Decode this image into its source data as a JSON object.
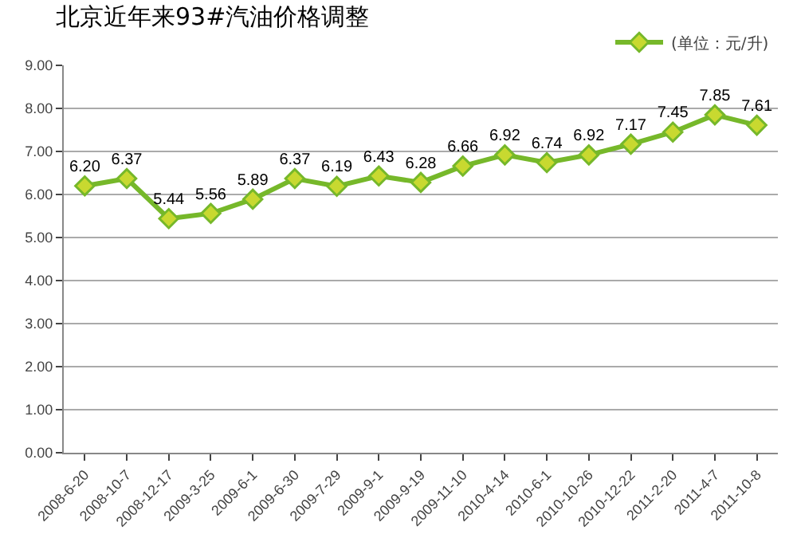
{
  "chart_data": {
    "type": "line",
    "title": "北京近年来93#汽油价格调整",
    "categories": [
      "2008-6-20",
      "2008-10-7",
      "2008-12-17",
      "2009-3-25",
      "2009-6-1",
      "2009-6-30",
      "2009-7-29",
      "2009-9-1",
      "2009-9-19",
      "2009-11-10",
      "2010-4-14",
      "2010-6-1",
      "2010-10-26",
      "2010-12-22",
      "2011-2-20",
      "2011-4-7",
      "2011-10-8"
    ],
    "series": [
      {
        "name": "(单位：元/升)",
        "color": "#76b82a",
        "values": [
          6.2,
          6.37,
          5.44,
          5.56,
          5.89,
          6.37,
          6.19,
          6.43,
          6.28,
          6.66,
          6.92,
          6.74,
          6.92,
          7.17,
          7.45,
          7.85,
          7.61
        ],
        "value_labels": [
          "6.20",
          "6.37",
          "5.44",
          "5.56",
          "5.89",
          "6.37",
          "6.19",
          "6.43",
          "6.28",
          "6.66",
          "6.92",
          "6.74",
          "6.92",
          "7.17",
          "7.45",
          "7.85",
          "7.61"
        ]
      }
    ],
    "ylim": [
      0,
      9
    ],
    "yticks": [
      {
        "value": 0,
        "label": "0.00"
      },
      {
        "value": 1,
        "label": "1.00"
      },
      {
        "value": 2,
        "label": "2.00"
      },
      {
        "value": 3,
        "label": "3.00"
      },
      {
        "value": 4,
        "label": "4.00"
      },
      {
        "value": 5,
        "label": "5.00"
      },
      {
        "value": 6,
        "label": "6.00"
      },
      {
        "value": 7,
        "label": "7.00"
      },
      {
        "value": 8,
        "label": "8.00"
      },
      {
        "value": 9,
        "label": "9.00"
      }
    ],
    "grid": "y",
    "legend": "top right",
    "marker": "diamond",
    "line_style": "solid"
  }
}
